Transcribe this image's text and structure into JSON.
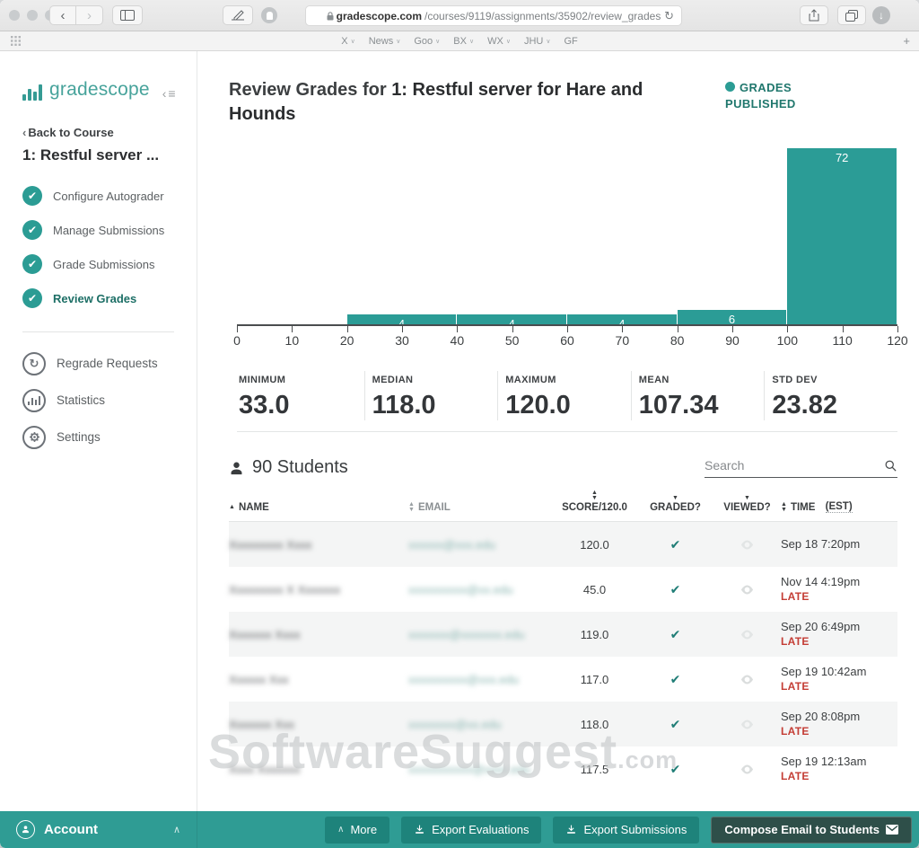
{
  "browser": {
    "url": {
      "host": "gradescope.com",
      "path": "/courses/9119/assignments/35902/review_grades",
      "reload": "↻"
    },
    "nav": {
      "back": "‹",
      "forward": "›"
    },
    "bookmarks": {
      "items": [
        {
          "label": "X",
          "chevron": "∨"
        },
        {
          "label": "News",
          "chevron": "∨"
        },
        {
          "label": "Goo",
          "chevron": "∨"
        },
        {
          "label": "BX",
          "chevron": "∨"
        },
        {
          "label": "WX",
          "chevron": "∨"
        },
        {
          "label": "JHU",
          "chevron": "∨"
        },
        {
          "label": "GF",
          "chevron": ""
        }
      ],
      "add": "+"
    }
  },
  "sidebar": {
    "logo_text": "gradescope",
    "collapse_glyph": "‹≡",
    "back_link": "Back to Course",
    "course_title": "1: Restful server ...",
    "steps": [
      {
        "label": "Configure Autograder"
      },
      {
        "label": "Manage Submissions"
      },
      {
        "label": "Grade Submissions"
      },
      {
        "label": "Review Grades"
      }
    ],
    "links": [
      {
        "label": "Regrade Requests"
      },
      {
        "label": "Statistics"
      },
      {
        "label": "Settings"
      }
    ]
  },
  "header": {
    "title_prefix": "Review Grades for ",
    "title_bold": "1: Restful server for Hare and Hounds",
    "status_badge": "GRADES PUBLISHED"
  },
  "chart_data": {
    "type": "bar",
    "subtype": "histogram",
    "bin_edges": [
      0,
      20,
      40,
      60,
      80,
      100,
      120
    ],
    "values": [
      0,
      4,
      4,
      4,
      6,
      72
    ],
    "x_ticks": [
      0,
      10,
      20,
      30,
      40,
      50,
      60,
      70,
      80,
      90,
      100,
      110,
      120
    ],
    "xlim": [
      0,
      120
    ],
    "ylim": [
      0,
      74
    ],
    "bar_color": "#2b9c96",
    "title": "",
    "xlabel": "",
    "ylabel": "",
    "grid": false,
    "legend": "none"
  },
  "stats": [
    {
      "label": "MINIMUM",
      "value": "33.0"
    },
    {
      "label": "MEDIAN",
      "value": "118.0"
    },
    {
      "label": "MAXIMUM",
      "value": "120.0"
    },
    {
      "label": "MEAN",
      "value": "107.34"
    },
    {
      "label": "STD DEV",
      "value": "23.82"
    }
  ],
  "students": {
    "count_label": "90 Students",
    "search_placeholder": "Search"
  },
  "table": {
    "columns": {
      "name": "NAME",
      "email": "EMAIL",
      "score": "SCORE/120.0",
      "graded": "GRADED?",
      "viewed": "VIEWED?",
      "time": "TIME",
      "time_est": "(EST)"
    },
    "rows": [
      {
        "name": "Xxxxxxxxx Xxxx",
        "email": "xxxxxx@xxx.edu",
        "score": "120.0",
        "time": "Sep 18 7:20pm",
        "late": ""
      },
      {
        "name": "Xxxxxxxxx X Xxxxxxx",
        "email": "xxxxxxxxxx@xx.edu",
        "score": "45.0",
        "time": "Nov 14 4:19pm",
        "late": "LATE"
      },
      {
        "name": "Xxxxxxx Xxxx",
        "email": "xxxxxxx@xxxxxxx.edu",
        "score": "119.0",
        "time": "Sep 20 6:49pm",
        "late": "LATE"
      },
      {
        "name": "Xxxxxx Xxx",
        "email": "xxxxxxxxxx@xxx.edu",
        "score": "117.0",
        "time": "Sep 19 10:42am",
        "late": "LATE"
      },
      {
        "name": "Xxxxxxx Xxx",
        "email": "xxxxxxxx@xx.edu",
        "score": "118.0",
        "time": "Sep 20 8:08pm",
        "late": "LATE"
      },
      {
        "name": "Xxxx Xxxxxxx",
        "email": "xxxxxxxxxxx@xxxx.edu",
        "score": "117.5",
        "time": "Sep 19 12:13am",
        "late": "LATE"
      }
    ]
  },
  "watermark": {
    "text": "SoftwareSuggest",
    "suffix": ".com"
  },
  "footer": {
    "account_label": "Account",
    "more_label": "More",
    "export_evaluations_label": "Export Evaluations",
    "export_submissions_label": "Export Submissions",
    "compose_label": "Compose Email to Students"
  },
  "colors": {
    "brand_teal": "#359b94",
    "bar_teal": "#2b9c96",
    "footer_teal": "#2f9c94",
    "button_teal": "#1e837b",
    "compose_dark": "#2e4f49",
    "badge_teal": "#20776d",
    "late_red": "#c43d35",
    "check_teal": "#1f7d76"
  }
}
